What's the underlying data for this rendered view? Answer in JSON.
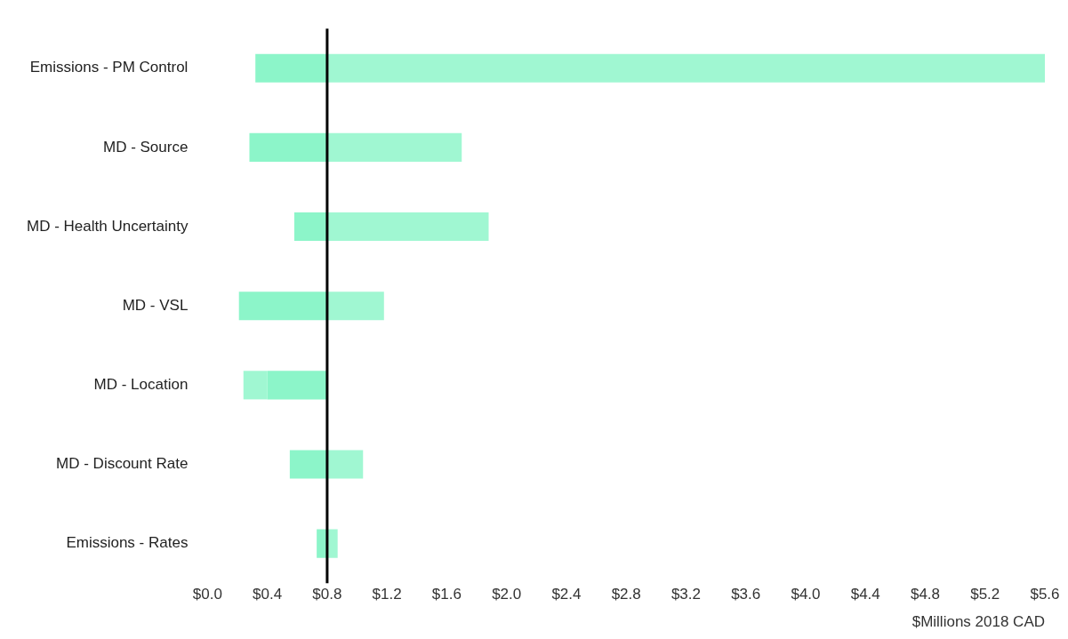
{
  "chart_data": {
    "type": "bar",
    "orientation": "horizontal",
    "xlabel": "$Millions 2018 CAD",
    "categories": [
      "Emissions - PM Control",
      "MD - Source",
      "MD - Health Uncertainty",
      "MD - VSL",
      "MD - Location",
      "MD - Discount Rate",
      "Emissions - Rates"
    ],
    "series": [
      {
        "color": "#8cf5c9",
        "base": [
          0.32,
          0.28,
          0.58,
          0.21,
          0.4,
          0.55,
          0.73
        ],
        "values": [
          0.48,
          0.52,
          0.22,
          0.59,
          0.4,
          0.25,
          0.07
        ]
      },
      {
        "color": "#a0f7d2",
        "base": [
          0.8,
          0.8,
          0.8,
          0.8,
          0.24,
          0.8,
          0.8
        ],
        "values": [
          4.8,
          0.9,
          1.08,
          0.38,
          0.16,
          0.24,
          0.07
        ]
      }
    ],
    "xlim": [
      0,
      5.6
    ],
    "xticks": [
      {
        "value": 0,
        "label": "$0.0"
      },
      {
        "value": 0.4,
        "label": "$0.4"
      },
      {
        "value": 0.8,
        "label": "$0.8"
      },
      {
        "value": 1.2,
        "label": "$1.2"
      },
      {
        "value": 1.6,
        "label": "$1.6"
      },
      {
        "value": 2,
        "label": "$2.0"
      },
      {
        "value": 2.4,
        "label": "$2.4"
      },
      {
        "value": 2.8,
        "label": "$2.8"
      },
      {
        "value": 3.2,
        "label": "$3.2"
      },
      {
        "value": 3.6,
        "label": "$3.6"
      },
      {
        "value": 4,
        "label": "$4.0"
      },
      {
        "value": 4.4,
        "label": "$4.4"
      },
      {
        "value": 4.8,
        "label": "$4.8"
      },
      {
        "value": 5.2,
        "label": "$5.2"
      },
      {
        "value": 5.6,
        "label": "$5.6"
      }
    ],
    "ref_lines": [
      {
        "axis": "x",
        "value": 0.8,
        "color": "#000000"
      }
    ],
    "grid": false,
    "legend": false
  }
}
